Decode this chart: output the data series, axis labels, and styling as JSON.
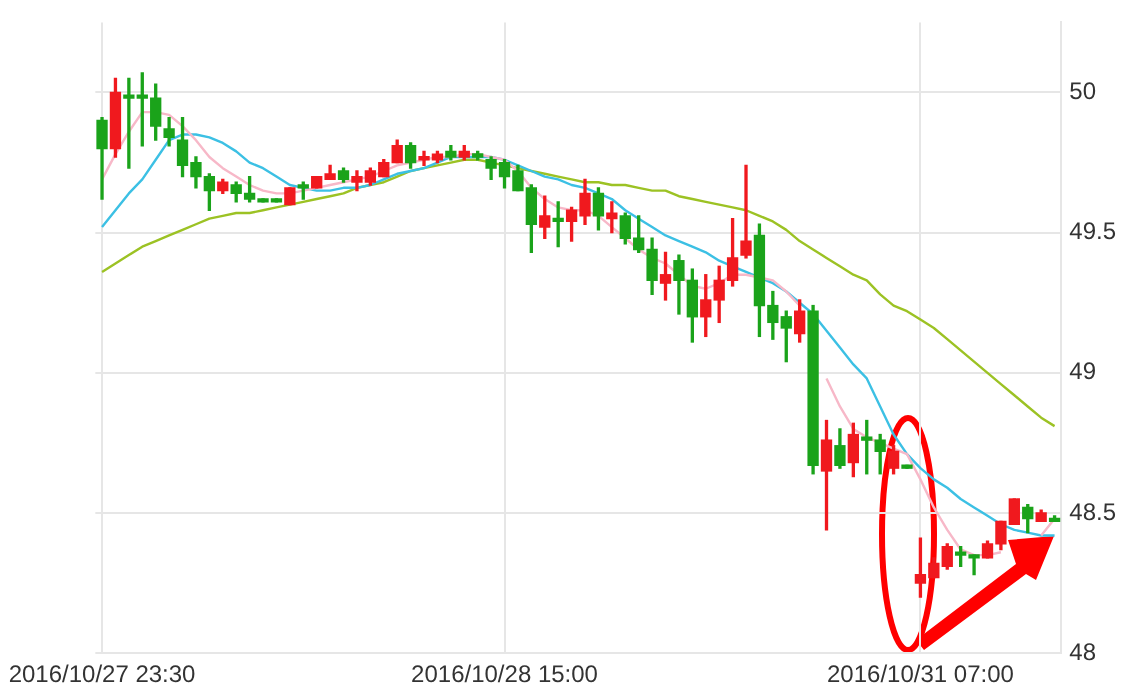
{
  "chart_data": {
    "type": "candlestick",
    "categories": [
      "2016/10/27 23:30",
      null,
      null,
      null,
      null,
      null,
      null,
      null,
      null,
      null,
      null,
      null,
      null,
      null,
      null,
      null,
      null,
      null,
      null,
      null,
      null,
      null,
      null,
      null,
      null,
      null,
      null,
      null,
      null,
      null,
      "2016/10/28 15:00",
      null,
      null,
      null,
      null,
      null,
      null,
      null,
      null,
      null,
      null,
      null,
      null,
      null,
      null,
      null,
      null,
      null,
      null,
      null,
      null,
      null,
      null,
      null,
      null,
      null,
      null,
      null,
      null,
      null,
      null,
      "2016/10/31 07:00",
      null,
      null,
      null,
      null,
      null,
      null,
      null,
      null,
      null,
      null
    ],
    "ohlc": [
      [
        49.9,
        49.91,
        49.62,
        49.8
      ],
      [
        49.8,
        50.05,
        49.77,
        50.0
      ],
      [
        49.99,
        50.05,
        49.73,
        49.98
      ],
      [
        49.99,
        50.07,
        49.81,
        49.98
      ],
      [
        49.98,
        50.03,
        49.83,
        49.88
      ],
      [
        49.87,
        49.91,
        49.81,
        49.84
      ],
      [
        49.83,
        49.91,
        49.7,
        49.74
      ],
      [
        49.75,
        49.77,
        49.66,
        49.7
      ],
      [
        49.7,
        49.71,
        49.58,
        49.65
      ],
      [
        49.65,
        49.69,
        49.64,
        49.68
      ],
      [
        49.67,
        49.68,
        49.61,
        49.64
      ],
      [
        49.64,
        49.7,
        49.61,
        49.62
      ],
      [
        49.62,
        49.62,
        49.61,
        49.61
      ],
      [
        49.62,
        49.62,
        49.61,
        49.61
      ],
      [
        49.6,
        49.66,
        49.6,
        49.66
      ],
      [
        49.67,
        49.68,
        49.62,
        49.66
      ],
      [
        49.66,
        49.7,
        49.66,
        49.7
      ],
      [
        49.69,
        49.74,
        49.69,
        49.71
      ],
      [
        49.72,
        49.73,
        49.68,
        49.69
      ],
      [
        49.68,
        49.72,
        49.65,
        49.7
      ],
      [
        49.68,
        49.73,
        49.67,
        49.72
      ],
      [
        49.7,
        49.76,
        49.7,
        49.75
      ],
      [
        49.75,
        49.83,
        49.75,
        49.81
      ],
      [
        49.81,
        49.82,
        49.73,
        49.75
      ],
      [
        49.76,
        49.79,
        49.74,
        49.77
      ],
      [
        49.76,
        49.79,
        49.75,
        49.78
      ],
      [
        49.79,
        49.81,
        49.76,
        49.77
      ],
      [
        49.77,
        49.81,
        49.76,
        49.79
      ],
      [
        49.78,
        49.79,
        49.76,
        49.77
      ],
      [
        49.76,
        49.77,
        49.69,
        49.73
      ],
      [
        49.75,
        49.76,
        49.66,
        49.7
      ],
      [
        49.72,
        49.74,
        49.65,
        49.65
      ],
      [
        49.66,
        49.67,
        49.43,
        49.53
      ],
      [
        49.52,
        49.63,
        49.48,
        49.56
      ],
      [
        49.55,
        49.61,
        49.45,
        49.54
      ],
      [
        49.54,
        49.59,
        49.47,
        49.58
      ],
      [
        49.56,
        49.69,
        49.53,
        49.64
      ],
      [
        49.64,
        49.66,
        49.51,
        49.56
      ],
      [
        49.55,
        49.61,
        49.5,
        49.57
      ],
      [
        49.56,
        49.57,
        49.46,
        49.48
      ],
      [
        49.48,
        49.56,
        49.43,
        49.44
      ],
      [
        49.44,
        49.48,
        49.28,
        49.33
      ],
      [
        49.32,
        49.43,
        49.26,
        49.35
      ],
      [
        49.4,
        49.42,
        49.21,
        49.33
      ],
      [
        49.33,
        49.37,
        49.11,
        49.2
      ],
      [
        49.2,
        49.35,
        49.13,
        49.26
      ],
      [
        49.26,
        49.38,
        49.18,
        49.33
      ],
      [
        49.33,
        49.55,
        49.31,
        49.41
      ],
      [
        49.42,
        49.74,
        49.41,
        49.47
      ],
      [
        49.49,
        49.53,
        49.13,
        49.24
      ],
      [
        49.24,
        49.29,
        49.12,
        49.18
      ],
      [
        49.2,
        49.22,
        49.04,
        49.16
      ],
      [
        49.14,
        49.26,
        49.11,
        49.22
      ],
      [
        49.22,
        49.24,
        48.64,
        48.67
      ],
      [
        48.65,
        48.83,
        48.44,
        48.76
      ],
      [
        48.74,
        48.8,
        48.66,
        48.67
      ],
      [
        48.68,
        48.82,
        48.63,
        48.78
      ],
      [
        48.77,
        48.83,
        48.64,
        48.76
      ],
      [
        48.76,
        48.78,
        48.64,
        48.72
      ],
      [
        48.66,
        48.74,
        48.64,
        48.72
      ],
      [
        48.67,
        48.67,
        48.66,
        48.66
      ],
      [
        48.25,
        48.41,
        48.2,
        48.28
      ],
      [
        48.27,
        48.34,
        48.27,
        48.32
      ],
      [
        48.31,
        48.39,
        48.3,
        48.38
      ],
      [
        48.36,
        48.38,
        48.31,
        48.35
      ],
      [
        48.35,
        48.35,
        48.28,
        48.34
      ],
      [
        48.34,
        48.4,
        48.34,
        48.39
      ],
      [
        48.39,
        48.47,
        48.37,
        48.47
      ],
      [
        48.46,
        48.55,
        48.46,
        48.55
      ],
      [
        48.52,
        48.53,
        48.43,
        48.48
      ],
      [
        48.47,
        48.51,
        48.47,
        48.5
      ],
      [
        48.48,
        48.49,
        48.47,
        48.47
      ]
    ],
    "colors": [
      "#1aa31a",
      "#f0191e",
      "#1aa31a",
      "#1aa31a",
      "#1aa31a",
      "#1aa31a",
      "#1aa31a",
      "#1aa31a",
      "#1aa31a",
      "#f0191e",
      "#1aa31a",
      "#1aa31a",
      "#1aa31a",
      "#1aa31a",
      "#f0191e",
      "#1aa31a",
      "#f0191e",
      "#f0191e",
      "#1aa31a",
      "#f0191e",
      "#f0191e",
      "#f0191e",
      "#f0191e",
      "#1aa31a",
      "#f0191e",
      "#f0191e",
      "#1aa31a",
      "#f0191e",
      "#1aa31a",
      "#1aa31a",
      "#1aa31a",
      "#1aa31a",
      "#1aa31a",
      "#f0191e",
      "#1aa31a",
      "#f0191e",
      "#f0191e",
      "#1aa31a",
      "#f0191e",
      "#1aa31a",
      "#1aa31a",
      "#1aa31a",
      "#f0191e",
      "#1aa31a",
      "#1aa31a",
      "#f0191e",
      "#f0191e",
      "#f0191e",
      "#f0191e",
      "#1aa31a",
      "#1aa31a",
      "#1aa31a",
      "#f0191e",
      "#1aa31a",
      "#f0191e",
      "#1aa31a",
      "#f0191e",
      "#1aa31a",
      "#1aa31a",
      "#f0191e",
      "#1aa31a",
      "#f0191e",
      "#f0191e",
      "#f0191e",
      "#1aa31a",
      "#1aa31a",
      "#f0191e",
      "#f0191e",
      "#f0191e",
      "#1aa31a",
      "#f0191e",
      "#1aa31a"
    ],
    "series": [
      {
        "type": "line",
        "color": "#f7b8c8",
        "values": [
          49.69,
          49.78,
          49.86,
          49.93,
          49.93,
          49.92,
          49.88,
          49.83,
          49.77,
          49.73,
          49.7,
          49.67,
          49.65,
          49.64,
          49.64,
          49.65,
          49.66,
          49.67,
          49.68,
          49.69,
          49.7,
          49.72,
          49.74,
          49.75,
          49.76,
          49.77,
          49.77,
          49.78,
          49.78,
          49.77,
          49.76,
          49.72,
          49.66,
          49.62,
          49.59,
          49.58,
          49.58,
          49.56,
          49.52,
          49.48,
          49.44,
          49.41,
          49.39,
          49.35,
          49.31,
          49.3,
          49.32,
          49.35,
          49.35,
          49.34,
          49.33,
          49.29,
          49.24,
          null,
          48.98,
          48.88,
          48.8,
          48.77,
          48.75,
          48.73,
          48.71,
          48.62,
          48.52,
          48.44,
          48.37,
          48.35,
          48.35,
          48.36,
          null,
          null,
          48.42,
          48.48
        ]
      },
      {
        "type": "line",
        "color": "#3cc0e4",
        "values": [
          49.52,
          49.58,
          49.64,
          49.69,
          49.76,
          49.83,
          49.85,
          49.85,
          49.84,
          49.82,
          49.79,
          49.75,
          49.73,
          49.7,
          49.67,
          49.66,
          49.65,
          49.65,
          49.66,
          49.66,
          49.67,
          49.69,
          49.71,
          49.72,
          49.73,
          49.75,
          49.77,
          49.77,
          49.77,
          49.77,
          49.76,
          49.74,
          49.72,
          49.7,
          49.69,
          49.67,
          49.66,
          49.64,
          49.62,
          49.58,
          49.55,
          49.52,
          49.49,
          49.47,
          49.45,
          49.43,
          49.4,
          49.38,
          49.36,
          49.34,
          49.32,
          49.29,
          49.25,
          49.21,
          49.15,
          49.09,
          49.03,
          48.98,
          48.88,
          48.78,
          48.71,
          48.66,
          48.62,
          48.59,
          48.55,
          48.52,
          48.49,
          48.46,
          48.44,
          48.43,
          48.42,
          48.42
        ]
      },
      {
        "type": "line",
        "color": "#9cc224",
        "values": [
          49.36,
          49.39,
          49.42,
          49.45,
          49.47,
          49.49,
          49.51,
          49.53,
          49.55,
          49.56,
          49.57,
          49.57,
          49.58,
          49.59,
          49.6,
          49.61,
          49.62,
          49.63,
          49.64,
          49.66,
          49.67,
          49.68,
          49.7,
          49.72,
          49.73,
          49.74,
          49.75,
          49.76,
          49.76,
          49.75,
          49.74,
          49.73,
          49.72,
          49.71,
          49.7,
          49.69,
          49.68,
          49.68,
          49.67,
          49.67,
          49.66,
          49.65,
          49.65,
          49.63,
          49.62,
          49.61,
          49.6,
          49.59,
          49.58,
          49.56,
          49.54,
          49.51,
          49.47,
          49.44,
          49.41,
          49.38,
          49.35,
          49.33,
          49.28,
          49.24,
          49.22,
          49.19,
          49.16,
          49.12,
          49.08,
          49.04,
          49.0,
          48.96,
          48.92,
          48.88,
          48.84,
          48.81
        ]
      }
    ],
    "ylim": [
      48,
      50.25
    ],
    "yticks": [
      48,
      48.5,
      49,
      49.5,
      50
    ],
    "grid": true
  }
}
